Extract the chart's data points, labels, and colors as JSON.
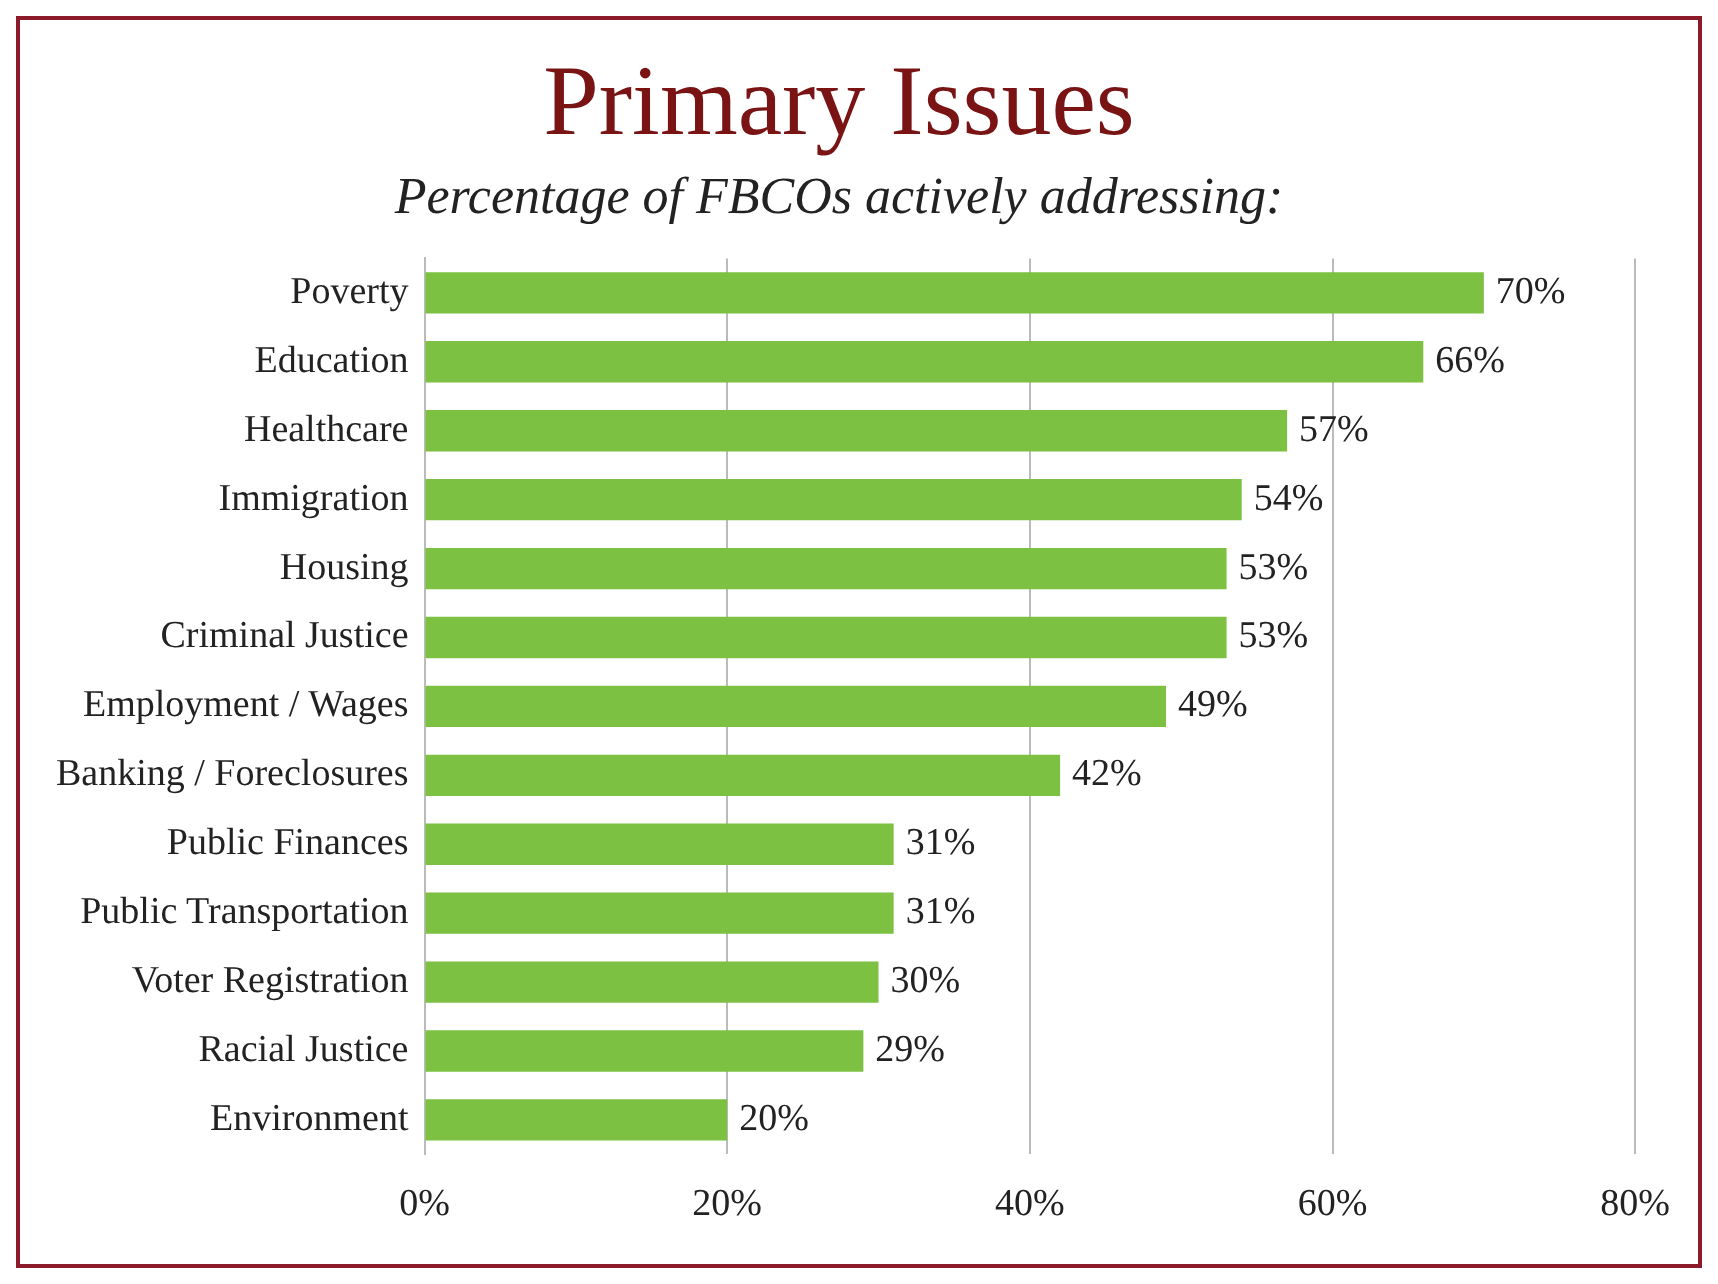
{
  "chart_data": {
    "type": "bar",
    "orientation": "horizontal",
    "title": "Primary Issues",
    "subtitle": "Percentage of FBCOs actively addressing:",
    "categories": [
      "Poverty",
      "Education",
      "Healthcare",
      "Immigration",
      "Housing",
      "Criminal Justice",
      "Employment / Wages",
      "Banking / Foreclosures",
      "Public Finances",
      "Public Transportation",
      "Voter Registration",
      "Racial Justice",
      "Environment"
    ],
    "values": [
      70,
      66,
      57,
      54,
      53,
      53,
      49,
      42,
      31,
      31,
      30,
      29,
      20
    ],
    "value_labels": [
      "70%",
      "66%",
      "57%",
      "54%",
      "53%",
      "53%",
      "49%",
      "42%",
      "31%",
      "31%",
      "30%",
      "29%",
      "20%"
    ],
    "color": "#7cc142",
    "xlim": [
      0,
      80
    ],
    "xticks": [
      {
        "value": 0,
        "label": "0%"
      },
      {
        "value": 20,
        "label": "20%"
      },
      {
        "value": 40,
        "label": "40%"
      },
      {
        "value": 60,
        "label": "60%"
      },
      {
        "value": 80,
        "label": "80%"
      }
    ],
    "grid": "x"
  }
}
